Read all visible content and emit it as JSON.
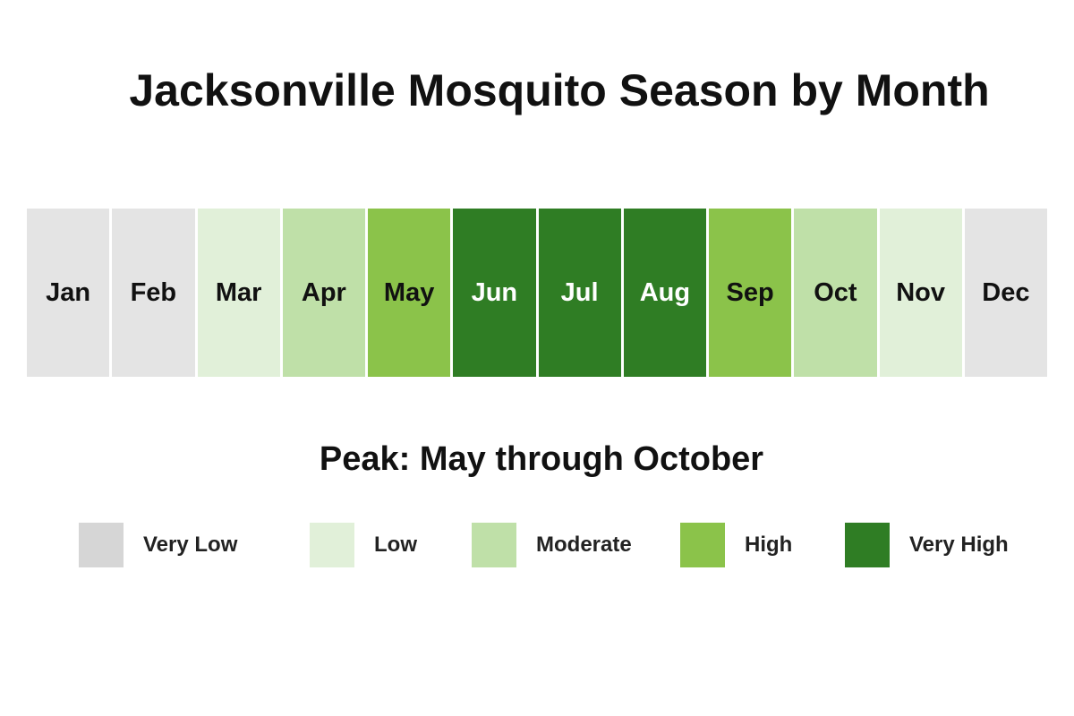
{
  "header": {
    "title": "Jacksonville Mosquito Season by Month"
  },
  "months": [
    {
      "label": "Jan",
      "color": "#e4e4e4"
    },
    {
      "label": "Feb",
      "color": "#e4e4e4"
    },
    {
      "label": "Mar",
      "color": "#e1f0d9"
    },
    {
      "label": "Apr",
      "color": "#bfe0a8"
    },
    {
      "label": "May",
      "color": "#8bc34a"
    },
    {
      "label": "Jun",
      "color": "#2f7d24"
    },
    {
      "label": "Jul",
      "color": "#2f7d24"
    },
    {
      "label": "Aug",
      "color": "#2f7d24"
    },
    {
      "label": "Sep",
      "color": "#8bc34a"
    },
    {
      "label": "Oct",
      "color": "#bfe0a8"
    },
    {
      "label": "Nov",
      "color": "#e1f0d9"
    },
    {
      "label": "Dec",
      "color": "#e4e4e4"
    }
  ],
  "subtitle": "Peak: May through October",
  "legend": [
    {
      "label": "Very Low",
      "color": "#d6d6d6"
    },
    {
      "label": "Low",
      "color": "#e1f0d9"
    },
    {
      "label": "Moderate",
      "color": "#bfe0a8"
    },
    {
      "label": "High",
      "color": "#8bc34a"
    },
    {
      "label": "Very High",
      "color": "#2f7d24"
    }
  ]
}
